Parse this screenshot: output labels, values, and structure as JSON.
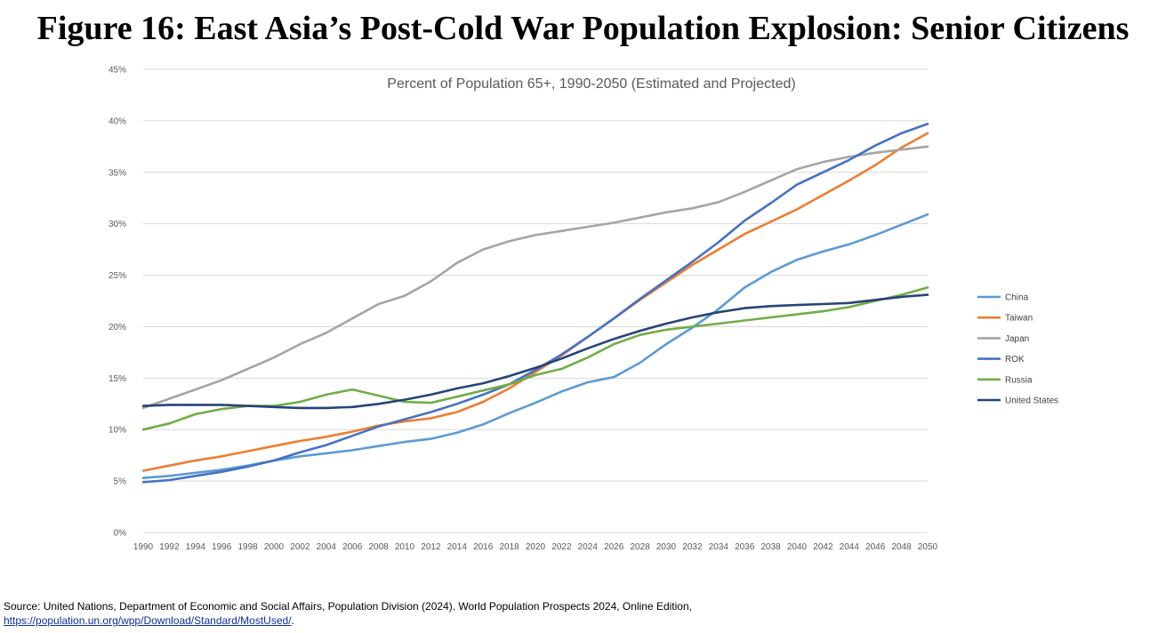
{
  "title": "Figure 16: East Asia’s Post-Cold War Population Explosion: Senior Citizens",
  "source": {
    "text": "Source: United Nations, Department of Economic and Social Affairs, Population Division (2024). World Population Prospects 2024, Online Edition,",
    "link": "https://population.un.org/wpp/Download/Standard/MostUsed/",
    "link_suffix": "."
  },
  "chart_data": {
    "type": "line",
    "title": "Percent of Population 65+, 1990-2050 (Estimated and Projected)",
    "xlabel": "",
    "ylabel": "",
    "x_range": [
      1990,
      2050
    ],
    "x_ticks": [
      "1990",
      "1992",
      "1994",
      "1996",
      "1998",
      "2000",
      "2002",
      "2004",
      "2006",
      "2008",
      "2010",
      "2012",
      "2014",
      "2016",
      "2018",
      "2020",
      "2022",
      "2024",
      "2026",
      "2028",
      "2030",
      "2032",
      "2034",
      "2036",
      "2038",
      "2040",
      "2042",
      "2044",
      "2046",
      "2048",
      "2050"
    ],
    "ylim": [
      0,
      45
    ],
    "y_ticks": [
      "0%",
      "5%",
      "10%",
      "15%",
      "20%",
      "25%",
      "30%",
      "35%",
      "40%",
      "45%"
    ],
    "y_tick_values": [
      0,
      5,
      10,
      15,
      20,
      25,
      30,
      35,
      40,
      45
    ],
    "grid": true,
    "legend_position": "right",
    "x": [
      1990,
      1992,
      1994,
      1996,
      1998,
      2000,
      2002,
      2004,
      2006,
      2008,
      2010,
      2012,
      2014,
      2016,
      2018,
      2020,
      2022,
      2024,
      2026,
      2028,
      2030,
      2032,
      2034,
      2036,
      2038,
      2040,
      2042,
      2044,
      2046,
      2048,
      2050
    ],
    "series": [
      {
        "name": "China",
        "color": "#5b9bd5",
        "values": [
          5.3,
          5.5,
          5.8,
          6.1,
          6.5,
          7.0,
          7.4,
          7.7,
          8.0,
          8.4,
          8.8,
          9.1,
          9.7,
          10.5,
          11.6,
          12.6,
          13.7,
          14.6,
          15.1,
          16.5,
          18.3,
          19.9,
          21.7,
          23.8,
          25.3,
          26.5,
          27.3,
          28.0,
          28.9,
          29.9,
          30.9
        ]
      },
      {
        "name": "Taiwan",
        "color": "#ed7d31",
        "values": [
          6.0,
          6.5,
          7.0,
          7.4,
          7.9,
          8.4,
          8.9,
          9.3,
          9.8,
          10.4,
          10.8,
          11.1,
          11.7,
          12.7,
          14.0,
          15.6,
          17.2,
          19.0,
          20.8,
          22.6,
          24.3,
          26.0,
          27.5,
          29.0,
          30.2,
          31.4,
          32.8,
          34.2,
          35.7,
          37.4,
          38.8
        ]
      },
      {
        "name": "Japan",
        "color": "#a5a5a5",
        "values": [
          12.1,
          13.0,
          13.9,
          14.8,
          15.9,
          17.0,
          18.3,
          19.4,
          20.8,
          22.2,
          23.0,
          24.4,
          26.2,
          27.5,
          28.3,
          28.9,
          29.3,
          29.7,
          30.1,
          30.6,
          31.1,
          31.5,
          32.1,
          33.1,
          34.2,
          35.3,
          36.0,
          36.5,
          36.9,
          37.2,
          37.5
        ]
      },
      {
        "name": "ROK",
        "color": "#4472c4",
        "values": [
          4.9,
          5.1,
          5.5,
          5.9,
          6.4,
          7.0,
          7.8,
          8.5,
          9.4,
          10.3,
          11.0,
          11.7,
          12.5,
          13.4,
          14.4,
          15.8,
          17.3,
          19.0,
          20.8,
          22.7,
          24.5,
          26.3,
          28.2,
          30.3,
          32.0,
          33.8,
          35.0,
          36.2,
          37.6,
          38.8,
          39.7
        ]
      },
      {
        "name": "Russia",
        "color": "#70ad47",
        "values": [
          10.0,
          10.6,
          11.5,
          12.0,
          12.3,
          12.3,
          12.7,
          13.4,
          13.9,
          13.3,
          12.7,
          12.6,
          13.2,
          13.8,
          14.4,
          15.3,
          15.9,
          17.0,
          18.3,
          19.2,
          19.7,
          20.0,
          20.3,
          20.6,
          20.9,
          21.2,
          21.5,
          21.9,
          22.5,
          23.1,
          23.8
        ]
      },
      {
        "name": "United States",
        "color": "#264478",
        "values": [
          12.3,
          12.4,
          12.4,
          12.4,
          12.3,
          12.2,
          12.1,
          12.1,
          12.2,
          12.5,
          12.9,
          13.4,
          14.0,
          14.5,
          15.2,
          16.0,
          16.9,
          17.9,
          18.8,
          19.6,
          20.3,
          20.9,
          21.4,
          21.8,
          22.0,
          22.1,
          22.2,
          22.3,
          22.6,
          22.9,
          23.1
        ]
      }
    ]
  }
}
